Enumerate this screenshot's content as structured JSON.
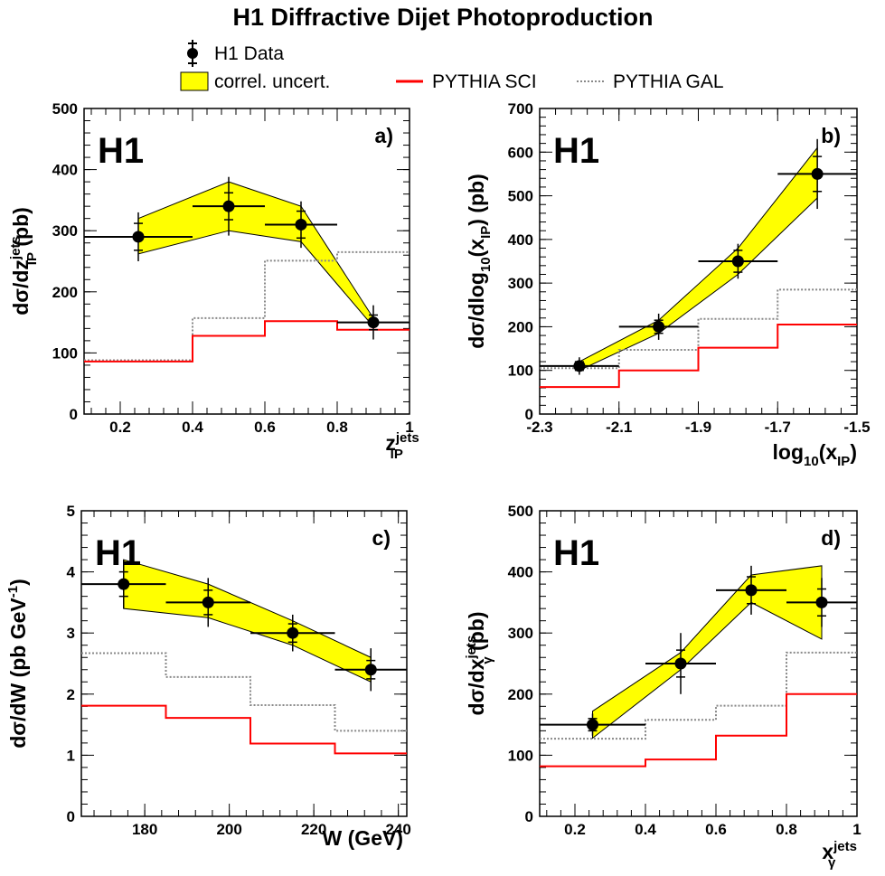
{
  "chart_data": {
    "title": "H1 Diffractive Dijet Photoproduction",
    "legend": {
      "data": "H1 Data",
      "band": "correl. uncert.",
      "sci": "PYTHIA SCI",
      "gal": "PYTHIA GAL"
    },
    "colors": {
      "band": "#ffff00",
      "sci": "#ff0000",
      "gal": "#888888",
      "data": "#000000"
    },
    "panels": [
      {
        "type": "line",
        "label": "a)",
        "tag": "H1",
        "ylabel": {
          "pre": "dσ/dz",
          "sup": "jets",
          "sub": "IP",
          "post": " (pb)"
        },
        "xlabel": {
          "pre": "z",
          "sup": "jets",
          "sub": "IP",
          "post": ""
        },
        "xlim": [
          0.1,
          1.0
        ],
        "ylim": [
          0,
          500
        ],
        "xticks": [
          0.2,
          0.4,
          0.6,
          0.8,
          1.0
        ],
        "xticklabels": [
          "0.2",
          "0.4",
          "0.6",
          "0.8",
          "1"
        ],
        "yticks": [
          0,
          100,
          200,
          300,
          400,
          500
        ],
        "yticklabels": [
          "0",
          "100",
          "200",
          "300",
          "400",
          "500"
        ],
        "data": [
          {
            "x": 0.25,
            "xlo": 0.1,
            "xhi": 0.4,
            "y": 290,
            "estat": 22,
            "etot": 40
          },
          {
            "x": 0.5,
            "xlo": 0.4,
            "xhi": 0.6,
            "y": 340,
            "estat": 22,
            "etot": 48
          },
          {
            "x": 0.7,
            "xlo": 0.6,
            "xhi": 0.8,
            "y": 310,
            "estat": 22,
            "etot": 38
          },
          {
            "x": 0.9,
            "xlo": 0.8,
            "xhi": 1.0,
            "y": 150,
            "estat": 12,
            "etot": 28
          }
        ],
        "band": {
          "x": [
            0.25,
            0.5,
            0.7,
            0.9
          ],
          "lo": [
            262,
            300,
            282,
            143
          ],
          "hi": [
            320,
            380,
            340,
            157
          ]
        },
        "sci": {
          "edges": [
            0.1,
            0.4,
            0.6,
            0.8,
            1.0
          ],
          "values": [
            86,
            128,
            152,
            138
          ]
        },
        "gal": {
          "edges": [
            0.1,
            0.4,
            0.6,
            0.8,
            1.0
          ],
          "values": [
            88,
            157,
            251,
            265
          ]
        }
      },
      {
        "type": "line",
        "label": "b)",
        "tag": "H1",
        "ylabel": {
          "pre": "dσ/dlog",
          "sup": "",
          "sub": "10",
          "post": "(x",
          "sub2": "IP",
          "post2": ") (pb)"
        },
        "xlabel": {
          "pre": "log",
          "sup": "",
          "sub": "10",
          "post": "(x",
          "sub2": "IP",
          "post2": ")"
        },
        "xlim": [
          -2.3,
          -1.5
        ],
        "ylim": [
          0,
          700
        ],
        "xticks": [
          -2.3,
          -2.1,
          -1.9,
          -1.7,
          -1.5
        ],
        "xticklabels": [
          "-2.3",
          "-2.1",
          "-1.9",
          "-1.7",
          "-1.5"
        ],
        "yticks": [
          0,
          100,
          200,
          300,
          400,
          500,
          600,
          700
        ],
        "yticklabels": [
          "0",
          "100",
          "200",
          "300",
          "400",
          "500",
          "600",
          "700"
        ],
        "data": [
          {
            "x": -2.2,
            "xlo": -2.3,
            "xhi": -2.1,
            "y": 110,
            "estat": 10,
            "etot": 20
          },
          {
            "x": -2.0,
            "xlo": -2.1,
            "xhi": -1.9,
            "y": 200,
            "estat": 15,
            "etot": 30
          },
          {
            "x": -1.8,
            "xlo": -1.9,
            "xhi": -1.7,
            "y": 350,
            "estat": 25,
            "etot": 40
          },
          {
            "x": -1.6,
            "xlo": -1.7,
            "xhi": -1.5,
            "y": 550,
            "estat": 40,
            "etot": 80
          }
        ],
        "band": {
          "x": [
            -2.2,
            -2.0,
            -1.8,
            -1.6
          ],
          "lo": [
            100,
            185,
            320,
            495
          ],
          "hi": [
            120,
            215,
            380,
            610
          ]
        },
        "sci": {
          "edges": [
            -2.3,
            -2.1,
            -1.9,
            -1.7,
            -1.5
          ],
          "values": [
            62,
            100,
            152,
            205
          ]
        },
        "gal": {
          "edges": [
            -2.3,
            -2.1,
            -1.9,
            -1.7,
            -1.5
          ],
          "values": [
            105,
            147,
            218,
            285
          ]
        }
      },
      {
        "type": "line",
        "label": "c)",
        "tag": "H1",
        "ylabel": {
          "pre": "dσ/dW (pb GeV",
          "sup": "-1",
          "sub": "",
          "post": ")"
        },
        "xlabel": {
          "pre": "W (GeV)",
          "sup": "",
          "sub": "",
          "post": ""
        },
        "xlim": [
          165,
          242
        ],
        "ylim": [
          0,
          5
        ],
        "xticks": [
          180,
          200,
          220,
          240
        ],
        "xticklabels": [
          "180",
          "200",
          "220",
          "240"
        ],
        "yticks": [
          0,
          1,
          2,
          3,
          4,
          5
        ],
        "yticklabels": [
          "0",
          "1",
          "2",
          "3",
          "4",
          "5"
        ],
        "data": [
          {
            "x": 175,
            "xlo": 165,
            "xhi": 185,
            "y": 3.8,
            "estat": 0.2,
            "etot": 0.4
          },
          {
            "x": 195,
            "xlo": 185,
            "xhi": 205,
            "y": 3.5,
            "estat": 0.2,
            "etot": 0.4
          },
          {
            "x": 215,
            "xlo": 205,
            "xhi": 225,
            "y": 3.0,
            "estat": 0.15,
            "etot": 0.3
          },
          {
            "x": 233.5,
            "xlo": 225,
            "xhi": 242,
            "y": 2.4,
            "estat": 0.15,
            "etot": 0.35
          }
        ],
        "band": {
          "x": [
            175,
            195,
            215,
            233.5
          ],
          "lo": [
            3.4,
            3.25,
            2.8,
            2.2
          ],
          "hi": [
            4.2,
            3.8,
            3.2,
            2.6
          ]
        },
        "sci": {
          "edges": [
            165,
            185,
            205,
            225,
            242
          ],
          "values": [
            1.81,
            1.61,
            1.19,
            1.03
          ]
        },
        "gal": {
          "edges": [
            165,
            185,
            205,
            225,
            242
          ],
          "values": [
            2.67,
            2.28,
            1.82,
            1.4
          ]
        }
      },
      {
        "type": "line",
        "label": "d)",
        "tag": "H1",
        "ylabel": {
          "pre": "dσ/dx",
          "sup": "jets",
          "sub": "γ",
          "post": " (pb)"
        },
        "xlabel": {
          "pre": "x",
          "sup": "jets",
          "sub": "γ",
          "post": ""
        },
        "xlim": [
          0.1,
          1.0
        ],
        "ylim": [
          0,
          500
        ],
        "xticks": [
          0.2,
          0.4,
          0.6,
          0.8,
          1.0
        ],
        "xticklabels": [
          "0.2",
          "0.4",
          "0.6",
          "0.8",
          "1"
        ],
        "yticks": [
          0,
          100,
          200,
          300,
          400,
          500
        ],
        "yticklabels": [
          "0",
          "100",
          "200",
          "300",
          "400",
          "500"
        ],
        "data": [
          {
            "x": 0.25,
            "xlo": 0.1,
            "xhi": 0.4,
            "y": 150,
            "estat": 10,
            "etot": 18
          },
          {
            "x": 0.5,
            "xlo": 0.4,
            "xhi": 0.6,
            "y": 250,
            "estat": 22,
            "etot": 50
          },
          {
            "x": 0.7,
            "xlo": 0.6,
            "xhi": 0.8,
            "y": 370,
            "estat": 22,
            "etot": 40
          },
          {
            "x": 0.9,
            "xlo": 0.8,
            "xhi": 1.0,
            "y": 350,
            "estat": 22,
            "etot": 40
          }
        ],
        "band": {
          "x": [
            0.25,
            0.5,
            0.7,
            0.9
          ],
          "lo": [
            128,
            240,
            350,
            290
          ],
          "hi": [
            172,
            268,
            395,
            410
          ]
        },
        "sci": {
          "edges": [
            0.1,
            0.4,
            0.6,
            0.8,
            1.0
          ],
          "values": [
            82,
            93,
            132,
            200
          ]
        },
        "gal": {
          "edges": [
            0.1,
            0.4,
            0.6,
            0.8,
            1.0
          ],
          "values": [
            127,
            158,
            181,
            268
          ]
        }
      }
    ]
  }
}
